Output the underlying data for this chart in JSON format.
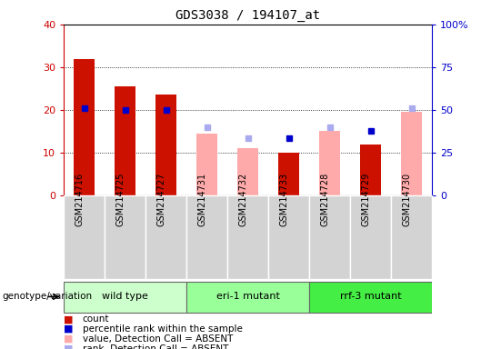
{
  "title": "GDS3038 / 194107_at",
  "samples": [
    "GSM214716",
    "GSM214725",
    "GSM214727",
    "GSM214731",
    "GSM214732",
    "GSM214733",
    "GSM214728",
    "GSM214729",
    "GSM214730"
  ],
  "groups": [
    {
      "label": "wild type",
      "indices": [
        0,
        1,
        2
      ],
      "color": "#ccffcc"
    },
    {
      "label": "eri-1 mutant",
      "indices": [
        3,
        4,
        5
      ],
      "color": "#99ff99"
    },
    {
      "label": "rrf-3 mutant",
      "indices": [
        6,
        7,
        8
      ],
      "color": "#44ee44"
    }
  ],
  "count": [
    32,
    25.5,
    23.5,
    null,
    null,
    10,
    null,
    12,
    null
  ],
  "percentile_rank": [
    20.5,
    20,
    20,
    null,
    null,
    13.5,
    null,
    15,
    null
  ],
  "absent_value": [
    null,
    null,
    null,
    14.5,
    11,
    null,
    15,
    null,
    19.5
  ],
  "absent_rank": [
    null,
    null,
    null,
    16,
    13.5,
    null,
    16,
    null,
    20.5
  ],
  "ylim_left": [
    0,
    40
  ],
  "ylim_right": [
    0,
    100
  ],
  "yticks_left": [
    0,
    10,
    20,
    30,
    40
  ],
  "ytick_labels_left": [
    "0",
    "10",
    "20",
    "30",
    "40"
  ],
  "ytick_right": [
    0,
    25,
    50,
    75,
    100
  ],
  "ytick_labels_right": [
    "0",
    "25",
    "50",
    "75",
    "100%"
  ],
  "left_tick_color": "#cc0000",
  "right_tick_color": "#0000cc",
  "count_color": "#cc1100",
  "rank_color": "#0000cc",
  "absent_value_color": "#ffaaaa",
  "absent_rank_color": "#aaaaee",
  "group_label": "genotype/variation",
  "legend_items": [
    {
      "label": "count",
      "color": "#cc1100"
    },
    {
      "label": "percentile rank within the sample",
      "color": "#0000cc"
    },
    {
      "label": "value, Detection Call = ABSENT",
      "color": "#ffaaaa"
    },
    {
      "label": "rank, Detection Call = ABSENT",
      "color": "#aaaaee"
    }
  ]
}
